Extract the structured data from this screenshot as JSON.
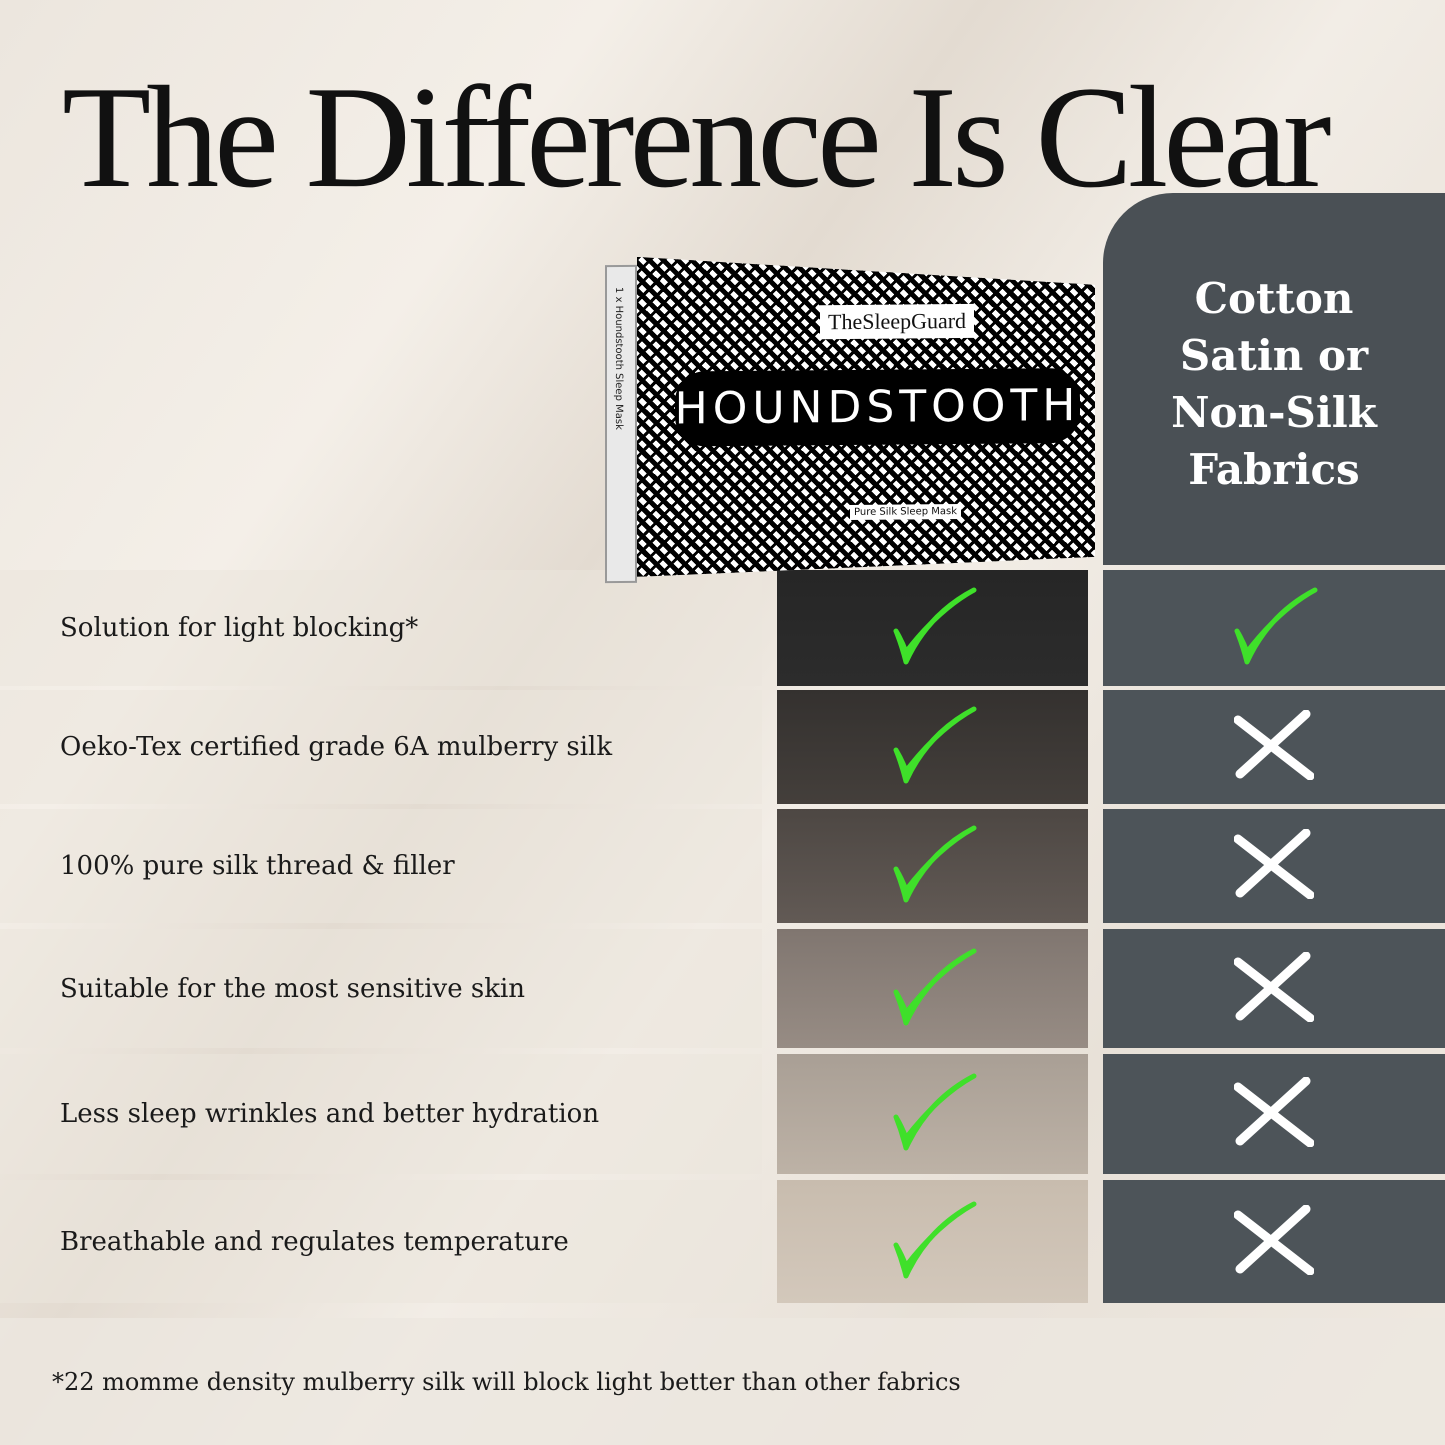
{
  "title": "The Difference Is Clear",
  "product": {
    "brand": "TheSleepGuard",
    "name": "HOUNDSTOOTH",
    "side_text": "1 x Houndstooth Sleep Mask",
    "tagline": "Pure Silk Sleep Mask"
  },
  "competitor_header": "Cotton\nSatin or\nNon-Silk\nFabrics",
  "colors": {
    "check": "#3fe02a",
    "cross": "#ffffff",
    "competitor_panel": "#4a5055"
  },
  "rows": [
    {
      "label": "Solution for light blocking*",
      "product": "check-icon",
      "competitor": "check-icon"
    },
    {
      "label": "Oeko-Tex certified grade 6A mulberry silk",
      "product": "check-icon",
      "competitor": "cross-icon"
    },
    {
      "label": "100% pure silk thread & filler",
      "product": "check-icon",
      "competitor": "cross-icon"
    },
    {
      "label": "Suitable for the most sensitive skin",
      "product": "check-icon",
      "competitor": "cross-icon"
    },
    {
      "label": "Less sleep wrinkles and better hydration",
      "product": "check-icon",
      "competitor": "cross-icon"
    },
    {
      "label": "Breathable and regulates temperature",
      "product": "check-icon",
      "competitor": "cross-icon"
    }
  ],
  "footnote": "*22 momme density mulberry silk will block light better than other fabrics"
}
